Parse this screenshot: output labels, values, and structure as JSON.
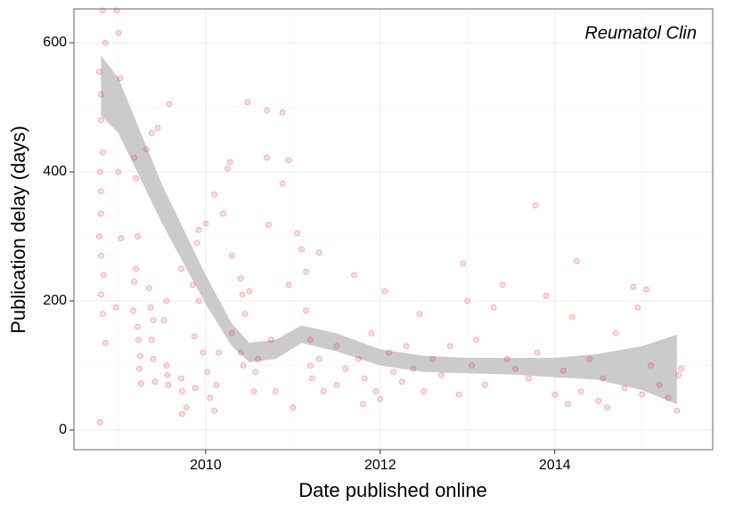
{
  "chart_data": {
    "type": "scatter",
    "annotation": "Reumatol Clin",
    "xlabel": "Date published online",
    "ylabel": "Publication delay (days)",
    "xlim": [
      2008.49,
      2015.81
    ],
    "ylim": [
      -30.3,
      652.4
    ],
    "xticks": [
      2010,
      2012,
      2014
    ],
    "yticks": [
      0,
      200,
      400,
      600
    ],
    "minor_xticks": [
      2009,
      2011,
      2013,
      2015
    ],
    "minor_yticks": [
      100,
      300,
      500
    ],
    "grid": true,
    "color": "#e41a1c",
    "x": [
      2008.82,
      2008.85,
      2008.78,
      2008.8,
      2008.8,
      2008.82,
      2008.79,
      2008.8,
      2008.8,
      2008.78,
      2008.8,
      2008.83,
      2008.8,
      2008.82,
      2008.85,
      2008.79,
      2008.98,
      2009.0,
      2009.02,
      2009.0,
      2009.03,
      2008.97,
      2009.18,
      2009.2,
      2009.22,
      2009.2,
      2009.18,
      2009.17,
      2009.22,
      2009.23,
      2009.25,
      2009.24,
      2009.26,
      2009.32,
      2009.38,
      2009.45,
      2009.35,
      2009.37,
      2009.4,
      2009.38,
      2009.4,
      2009.42,
      2009.58,
      2009.55,
      2009.52,
      2009.55,
      2009.56,
      2009.57,
      2009.72,
      2009.72,
      2009.73,
      2009.73,
      2009.78,
      2009.85,
      2009.87,
      2009.88,
      2009.9,
      2009.92,
      2009.92,
      2009.97,
      2010.0,
      2010.02,
      2010.05,
      2010.1,
      2010.12,
      2010.1,
      2010.15,
      2010.2,
      2010.25,
      2010.28,
      2010.3,
      2010.3,
      2010.4,
      2010.42,
      2010.45,
      2010.4,
      2010.43,
      2010.48,
      2010.5,
      2010.55,
      2010.57,
      2010.6,
      2010.7,
      2010.7,
      2010.72,
      2010.75,
      2010.8,
      2010.88,
      2010.88,
      2010.95,
      2010.95,
      2011.0,
      2011.05,
      2011.1,
      2011.15,
      2011.15,
      2011.2,
      2011.2,
      2011.22,
      2011.3,
      2011.3,
      2011.35,
      2011.5,
      2011.5,
      2011.6,
      2011.7,
      2011.75,
      2011.8,
      2011.82,
      2011.9,
      2011.95,
      2012.0,
      2012.05,
      2012.1,
      2012.15,
      2012.25,
      2012.3,
      2012.38,
      2012.45,
      2012.5,
      2012.6,
      2012.7,
      2012.8,
      2012.9,
      2012.95,
      2013.0,
      2013.05,
      2013.1,
      2013.2,
      2013.3,
      2013.4,
      2013.45,
      2013.55,
      2013.7,
      2013.78,
      2013.8,
      2013.9,
      2014.0,
      2014.1,
      2014.15,
      2014.2,
      2014.25,
      2014.3,
      2014.4,
      2014.5,
      2014.55,
      2014.6,
      2014.7,
      2014.8,
      2014.9,
      2014.95,
      2015.0,
      2015.05,
      2015.1,
      2015.2,
      2015.3,
      2015.4,
      2015.42,
      2015.45
    ],
    "values": [
      650,
      600,
      555,
      520,
      480,
      430,
      400,
      370,
      335,
      300,
      270,
      240,
      210,
      180,
      135,
      12,
      650,
      615,
      545,
      400,
      297,
      190,
      422,
      390,
      300,
      250,
      230,
      185,
      160,
      140,
      115,
      95,
      72,
      435,
      460,
      468,
      220,
      190,
      170,
      140,
      110,
      75,
      505,
      200,
      170,
      100,
      85,
      70,
      250,
      80,
      60,
      25,
      35,
      225,
      145,
      65,
      290,
      310,
      200,
      120,
      320,
      90,
      50,
      365,
      70,
      30,
      120,
      335,
      405,
      415,
      270,
      150,
      235,
      210,
      180,
      120,
      100,
      508,
      215,
      60,
      90,
      110,
      495,
      422,
      318,
      140,
      60,
      492,
      382,
      418,
      225,
      35,
      305,
      280,
      245,
      185,
      140,
      100,
      80,
      275,
      110,
      60,
      130,
      70,
      95,
      240,
      110,
      40,
      80,
      150,
      60,
      48,
      215,
      120,
      90,
      75,
      130,
      95,
      180,
      60,
      110,
      85,
      130,
      55,
      258,
      200,
      100,
      140,
      70,
      190,
      225,
      110,
      95,
      80,
      348,
      120,
      208,
      55,
      92,
      40,
      175,
      262,
      60,
      110,
      45,
      80,
      35,
      150,
      65,
      222,
      190,
      55,
      218,
      100,
      70,
      50,
      30,
      85,
      95
    ],
    "band": {
      "color": "#bebebe",
      "x": [
        2008.8,
        2009.0,
        2009.5,
        2010.0,
        2010.3,
        2010.5,
        2010.8,
        2011.1,
        2011.5,
        2012.0,
        2012.5,
        2013.0,
        2013.5,
        2014.0,
        2014.5,
        2015.0,
        2015.4
      ],
      "upper": [
        580,
        545,
        380,
        240,
        165,
        135,
        140,
        162,
        150,
        125,
        115,
        112,
        112,
        112,
        118,
        130,
        148
      ],
      "lower": [
        487,
        460,
        320,
        195,
        130,
        105,
        110,
        135,
        122,
        100,
        90,
        88,
        86,
        82,
        78,
        62,
        40
      ]
    }
  }
}
